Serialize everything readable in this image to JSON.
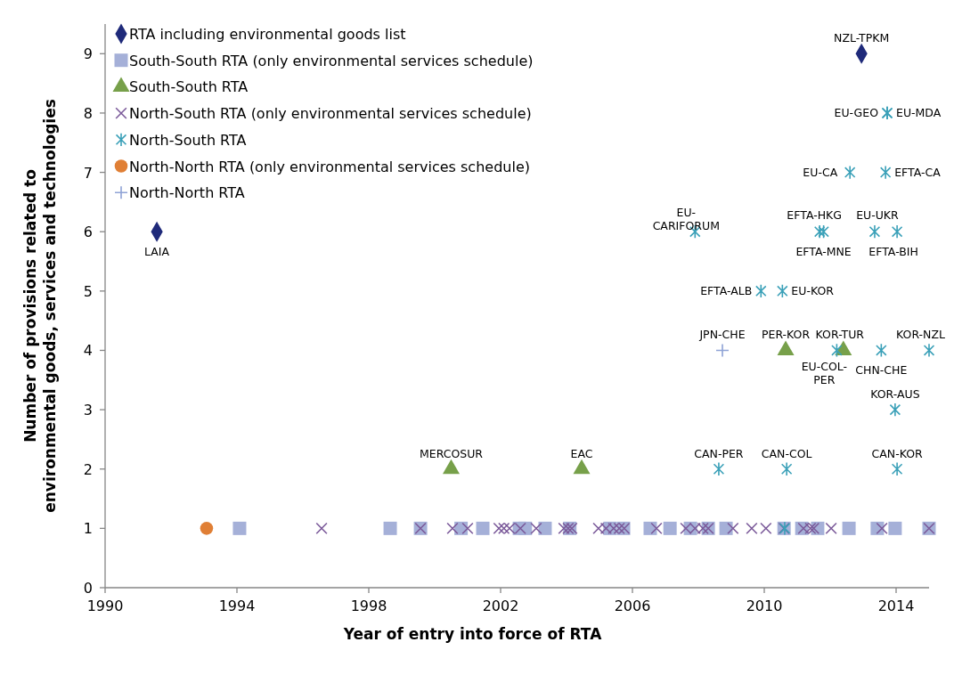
{
  "chart_data": {
    "type": "scatter",
    "xlabel": "Year of entry into force of RTA",
    "ylabel": "Number of provisions related to environmental goods, services and technologies",
    "xlim": [
      1990,
      2015
    ],
    "ylim": [
      0,
      9.5
    ],
    "xticks": [
      1990,
      1994,
      1998,
      2002,
      2006,
      2010,
      2014
    ],
    "yticks": [
      0,
      1,
      2,
      3,
      4,
      5,
      6,
      7,
      8,
      9
    ],
    "grid": false,
    "legend": "top left",
    "series": [
      {
        "name": "RTA including environmental goods list",
        "color": "#1f2a7a",
        "marker": "diamond",
        "x": [
          1991.57,
          2012.95
        ],
        "values": [
          6,
          9
        ]
      },
      {
        "name": "South-South RTA (only environmental services schedule)",
        "color": "#a5b0d8",
        "marker": "square",
        "x": [
          1994.08,
          1998.65,
          1999.57,
          2000.8,
          2001.46,
          2002.57,
          2002.75,
          2003.35,
          2004.1,
          2005.32,
          2005.73,
          2006.54,
          2007.14,
          2007.76,
          2008.3,
          2008.84,
          2010.6,
          2011.14,
          2011.62,
          2012.57,
          2013.43,
          2013.97,
          2015.0
        ],
        "values": [
          1,
          1,
          1,
          1,
          1,
          1,
          1,
          1,
          1,
          1,
          1,
          1,
          1,
          1,
          1,
          1,
          1,
          1,
          1,
          1,
          1,
          1,
          1
        ]
      },
      {
        "name": "South-South RTA",
        "color": "#77a04a",
        "marker": "triangle",
        "x": [
          2000.5,
          2004.46,
          2010.65,
          2012.4
        ],
        "values": [
          2,
          2,
          4,
          4
        ]
      },
      {
        "name": "North-South RTA  (only environmental services schedule)",
        "color": "#7b5a9a",
        "marker": "cross",
        "x": [
          1996.57,
          1999.57,
          2000.54,
          2001.0,
          2001.95,
          2002.1,
          2002.27,
          2002.6,
          2003.08,
          2003.92,
          2004.05,
          2004.16,
          2004.97,
          2005.2,
          2005.43,
          2005.6,
          2005.75,
          2006.73,
          2007.62,
          2007.9,
          2008.14,
          2008.3,
          2009.05,
          2009.62,
          2010.05,
          2010.6,
          2011.19,
          2011.4,
          2011.5,
          2012.03,
          2013.57,
          2015.0
        ],
        "values": [
          1,
          1,
          1,
          1,
          1,
          1,
          1,
          1,
          1,
          1,
          1,
          1,
          1,
          1,
          1,
          1,
          1,
          1,
          1,
          1,
          1,
          1,
          1,
          1,
          1,
          1,
          1,
          1,
          1,
          1,
          1,
          1
        ]
      },
      {
        "name": "North-South RTA",
        "color": "#3aa0b8",
        "x": [
          2013.73,
          2013.73,
          2012.6,
          2013.68,
          2007.9,
          2011.68,
          2011.8,
          2013.35,
          2014.03,
          2009.9,
          2010.55,
          2012.2,
          2013.55,
          2015.0,
          2013.97,
          2008.62,
          2010.68,
          2014.03,
          2010.62
        ],
        "values": [
          8,
          8,
          7,
          7,
          6,
          6,
          6,
          6,
          6,
          5,
          5,
          4,
          4,
          4,
          3,
          2,
          2,
          2,
          1
        ]
      },
      {
        "name": "North-North RTA  (only environmental services schedule)",
        "color": "#e07f35",
        "marker": "circle",
        "x": [
          1993.08
        ],
        "values": [
          1
        ]
      },
      {
        "name": "North-North RTA",
        "color": "#8fa3d6",
        "marker": "plus",
        "x": [
          2008.73
        ],
        "values": [
          4
        ]
      }
    ],
    "annotations": [
      {
        "text": "LAIA",
        "x": 1991.57,
        "y": 6
      },
      {
        "text": "NZL-TPKM",
        "x": 2012.95,
        "y": 9
      },
      {
        "text": "EU-GEO",
        "x": 2013.73,
        "y": 8
      },
      {
        "text": "EU-MDA",
        "x": 2013.73,
        "y": 8
      },
      {
        "text": "EU-CA",
        "x": 2012.6,
        "y": 7
      },
      {
        "text": "EFTA-CA",
        "x": 2013.68,
        "y": 7
      },
      {
        "text": "EU-CARIFORUM",
        "x": 2007.9,
        "y": 6
      },
      {
        "text": "EFTA-HKG",
        "x": 2011.68,
        "y": 6
      },
      {
        "text": "EFTA-MNE",
        "x": 2011.8,
        "y": 6
      },
      {
        "text": "EU-UKR",
        "x": 2013.35,
        "y": 6
      },
      {
        "text": "EFTA-BIH",
        "x": 2014.03,
        "y": 6
      },
      {
        "text": "EFTA-ALB",
        "x": 2009.9,
        "y": 5
      },
      {
        "text": "EU-KOR",
        "x": 2010.55,
        "y": 5
      },
      {
        "text": "JPN-CHE",
        "x": 2008.73,
        "y": 4
      },
      {
        "text": "PER-KOR",
        "x": 2010.65,
        "y": 4
      },
      {
        "text": "KOR-TUR",
        "x": 2012.4,
        "y": 4
      },
      {
        "text": "EU-COL-PER",
        "x": 2012.2,
        "y": 4
      },
      {
        "text": "CHN-CHE",
        "x": 2013.55,
        "y": 4
      },
      {
        "text": "KOR-NZL",
        "x": 2015.0,
        "y": 4
      },
      {
        "text": "KOR-AUS",
        "x": 2013.97,
        "y": 3
      },
      {
        "text": "CAN-PER",
        "x": 2008.62,
        "y": 2
      },
      {
        "text": "CAN-COL",
        "x": 2010.68,
        "y": 2
      },
      {
        "text": "CAN-KOR",
        "x": 2014.03,
        "y": 2
      },
      {
        "text": "MERCOSUR",
        "x": 2000.5,
        "y": 2
      },
      {
        "text": "EAC",
        "x": 2004.46,
        "y": 2
      }
    ]
  }
}
